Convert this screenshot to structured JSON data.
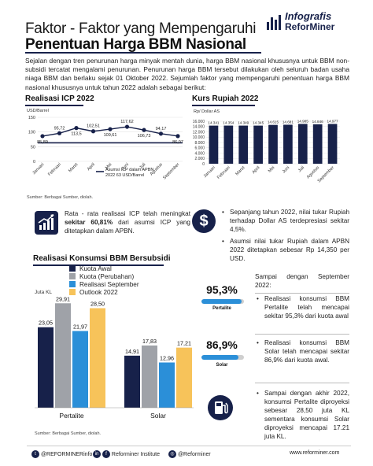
{
  "header": {
    "title_line1": "Faktor - Faktor yang Mempengaruhi",
    "title_line2": "Penentuan Harga BBM Nasional",
    "logo_line1": "Infografis",
    "logo_line2": "ReforMiner"
  },
  "intro": "Sejalan dengan tren penurunan harga minyak mentah dunia, harga BBM nasional khususnya untuk BBM non-subsidi tercatat mengalami penurunan. Penurunan harga BBM tersebut dilakukan oleh seluruh badan usaha niaga BBM dan berlaku sejak 01 Oktober 2022. Sejumlah faktor yang mempengaruhi penentuan harga BBM nasional khususnya untuk tahun 2022 adalah sebagai berikut:",
  "icp": {
    "heading": "Realisasi ICP 2022",
    "unit": "USD/Barrel",
    "legend": "Asumsi ICP dalam APBN 2022 63 USD/Barrel",
    "source": "Sumber: Berbagai Sumber, diolah."
  },
  "kurs": {
    "heading": "Kurs Rupiah 2022",
    "unit": "Rp/ Dollar AS"
  },
  "chart_data": [
    {
      "type": "line",
      "title": "Realisasi ICP 2022",
      "ylabel": "USD/Barrel",
      "categories": [
        "Januari",
        "Februari",
        "Maret",
        "April",
        "Mei",
        "Juni",
        "Juli",
        "Agustus",
        "September"
      ],
      "series": [
        {
          "name": "Realisasi ICP",
          "values": [
            85.89,
            95.72,
            113.5,
            102.51,
            109.61,
            117.62,
            106.73,
            94.17,
            86.07
          ]
        }
      ],
      "labels": [
        "85,89",
        "95,72",
        "113,5",
        "102,51",
        "109,61",
        "117,62",
        "106,73",
        "94,17",
        "86,07"
      ],
      "reference": {
        "value": 63,
        "label": "Asumsi ICP dalam APBN 2022 63 USD/Barrel"
      },
      "ylim": [
        0,
        150
      ],
      "yticks": [
        0,
        50,
        100,
        150
      ]
    },
    {
      "type": "bar",
      "title": "Kurs Rupiah 2022",
      "ylabel": "Rp/ Dollar AS",
      "categories": [
        "Januari",
        "Februari",
        "Maret",
        "April",
        "Mei",
        "Juni",
        "Juli",
        "Agustus",
        "September"
      ],
      "values": [
        14341,
        14354,
        14349,
        14345,
        14615,
        14681,
        14985,
        14846,
        14977
      ],
      "labels": [
        "14.341",
        "14.354",
        "14.349",
        "14.345",
        "14.615",
        "14.681",
        "14.985",
        "14.846",
        "14.977"
      ],
      "ylim": [
        0,
        16000
      ],
      "yticks": [
        0,
        2000,
        4000,
        6000,
        8000,
        10000,
        12000,
        14000,
        16000
      ],
      "yticklabels": [
        "0",
        "2.000",
        "4.000",
        "6.000",
        "8.000",
        "10.000",
        "12.000",
        "14.000",
        "16.000"
      ]
    },
    {
      "type": "bar",
      "title": "Realisasi Konsumsi BBM Bersubsidi",
      "ylabel": "Juta KL",
      "categories": [
        "Pertalite",
        "Solar"
      ],
      "series": [
        {
          "name": "Kuota Awal",
          "values": [
            23.05,
            14.91
          ],
          "labels": [
            "23,05",
            "14,91"
          ]
        },
        {
          "name": "Kuota (Perubahan)",
          "values": [
            29.91,
            17.83
          ],
          "labels": [
            "29,91",
            "17,83"
          ]
        },
        {
          "name": "Realisasi September",
          "values": [
            21.97,
            12.96
          ],
          "labels": [
            "21,97",
            "12,96"
          ]
        },
        {
          "name": "Outlook 2022",
          "values": [
            28.5,
            17.21
          ],
          "labels": [
            "28,50",
            "17,21"
          ]
        }
      ],
      "ylim": [
        0,
        32
      ]
    }
  ],
  "colors": {
    "navy": "#17214a",
    "grey": "#9fa2a8",
    "blue": "#2b8fd8",
    "yellow": "#f7c35a",
    "gauge_track": "#cfcfcf"
  },
  "icp_note": {
    "prefix": "Rata - rata realisasi ICP telah meningkat ",
    "bold": "sekitar 60,81%",
    "suffix": " dari asumsi ICP yang ditetapkan dalam APBN."
  },
  "kurs_notes": [
    "Sepanjang tahun 2022, nilai tukar Rupiah terhadap Dollar AS terdepresiasi sekitar 4,5%.",
    "Asumsi nilai tukar Rupiah dalam APBN 2022 ditetapkan sebesar Rp 14,350 per USD."
  ],
  "bbm": {
    "heading": "Realisasi Konsumsi BBM Bersubsidi",
    "unit": "Juta KL",
    "source": "Sumber: Berbagai Sumber, diolah."
  },
  "gauges": [
    {
      "value_text": "95,3%",
      "label": "Pertalite",
      "fraction": 0.953
    },
    {
      "value_text": "86,9%",
      "label": "Solar",
      "fraction": 0.869
    }
  ],
  "right_notes": {
    "intro": "Sampai dengan September 2022:",
    "item1": "Realisasi konsumsi BBM Pertalite telah mencapai sekitar 95,3% dari kuota awal",
    "item2": "Realisasi konsumsi BBM Solar telah mencapai sekitar 86,9% dari kuota awal.",
    "item3": "Sampai dengan akhir 2022, konsumsi Pertalite diproyeksi sebesar 28,50 juta KL sementara konsumsi Solar diproyeksi mencapai 17.21 juta KL."
  },
  "icons": {
    "icp": "rising-chart-icon",
    "kurs": "dollar-coin-icon",
    "fuel": "fuel-pump-icon"
  },
  "footer": {
    "twitter": "@REFORMINERinfo",
    "facebook": "Reforminer Institute",
    "instagram": "@Reforminer",
    "website": "www.reforminer.com"
  }
}
